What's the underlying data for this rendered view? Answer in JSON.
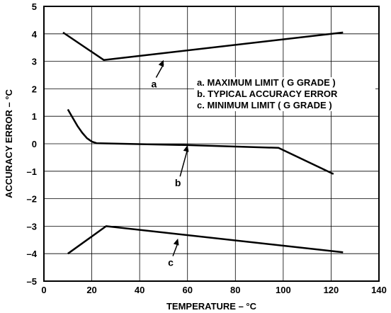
{
  "chart_data": {
    "type": "line",
    "xlabel": "TEMPERATURE – °C",
    "ylabel": "ACCURACY ERROR – °C",
    "xlim": [
      0,
      140
    ],
    "ylim": [
      -5,
      5
    ],
    "xticks": [
      0,
      20,
      40,
      60,
      80,
      100,
      120,
      140
    ],
    "yticks": [
      -5,
      -4,
      -3,
      -2,
      -1,
      0,
      1,
      2,
      3,
      4,
      5
    ],
    "grid": true,
    "legend_entries": [
      "a.  MAXIMUM LIMIT ( G GRADE )",
      "b.  TYPICAL ACCURACY ERROR",
      "c.  MINIMUM LIMIT ( G GRADE )"
    ],
    "series": [
      {
        "id": "a",
        "name": "a",
        "x": [
          8,
          25,
          125
        ],
        "y": [
          4.05,
          3.05,
          4.05
        ]
      },
      {
        "id": "b",
        "name": "b",
        "x": [
          10,
          12,
          14,
          16,
          18,
          20,
          22,
          60,
          98,
          121
        ],
        "y": [
          1.25,
          0.95,
          0.65,
          0.4,
          0.2,
          0.08,
          0.02,
          -0.05,
          -0.15,
          -1.1
        ]
      },
      {
        "id": "c",
        "name": "c",
        "x": [
          10,
          26,
          125
        ],
        "y": [
          -4.0,
          -3.0,
          -3.95
        ]
      }
    ],
    "annotations": [
      {
        "label": "a",
        "text_x": 46,
        "text_y": 2.05,
        "arrow_x": 50,
        "arrow_y": 3.05
      },
      {
        "label": "b",
        "text_x": 56,
        "text_y": -1.55,
        "arrow_x": 60,
        "arrow_y": -0.05
      },
      {
        "label": "c",
        "text_x": 53,
        "text_y": -4.45,
        "arrow_x": 56,
        "arrow_y": -3.45
      }
    ]
  }
}
